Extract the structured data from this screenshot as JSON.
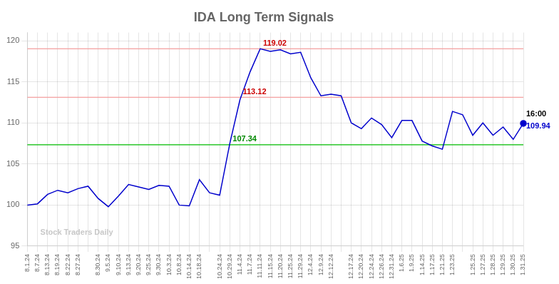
{
  "chart_data": {
    "type": "line",
    "title": "IDA Long Term Signals",
    "categories": [
      "8.1.24",
      "8.7.24",
      "8.13.24",
      "8.19.24",
      "8.22.24",
      "8.27.24",
      null,
      "8.30.24",
      "9.5.24",
      "9.10.24",
      "9.13.24",
      "9.20.24",
      "9.25.24",
      "9.30.24",
      "10.3.24",
      "10.8.24",
      "10.14.24",
      "10.18.24",
      null,
      "10.24.24",
      "10.29.24",
      "11.4.24",
      "11.7.24",
      "11.11.24",
      "11.15.24",
      "11.20.24",
      "11.25.24",
      "11.29.24",
      "12.4.24",
      "12.9.24",
      "12.12.24",
      null,
      "12.17.24",
      "12.20.24",
      "12.24.24",
      "12.26.24",
      "12.31.24",
      "1.6.25",
      "1.9.25",
      "1.14.25",
      "1.17.25",
      "1.21.25",
      "1.23.25",
      null,
      "1.25.25",
      "1.27.25",
      "1.28.25",
      "1.29.25",
      "1.30.25",
      "1.31.25"
    ],
    "values": [
      100.0,
      100.15,
      101.3,
      101.8,
      101.5,
      102.0,
      102.3,
      100.8,
      99.8,
      101.1,
      102.5,
      102.2,
      101.9,
      102.4,
      102.3,
      100.0,
      99.9,
      103.1,
      101.5,
      101.2,
      107.5,
      112.8,
      116.2,
      119.02,
      118.7,
      118.9,
      118.4,
      118.6,
      115.5,
      113.3,
      113.5,
      113.3,
      110.0,
      109.3,
      110.6,
      109.8,
      108.2,
      110.3,
      110.3,
      107.8,
      107.2,
      106.8,
      111.4,
      111.0,
      108.5,
      110.0,
      108.5,
      109.5,
      108.0,
      109.94
    ],
    "color": "#0000cc",
    "ylim": [
      95,
      121
    ],
    "yticks": [
      95,
      100,
      105,
      110,
      115,
      120
    ],
    "grid": true,
    "reference_lines": [
      {
        "value": 119.02,
        "color": "#f4a0a0"
      },
      {
        "value": 113.12,
        "color": "#f4a0a0"
      },
      {
        "value": 107.34,
        "color": "#00bb00"
      }
    ],
    "annotations": [
      {
        "text": "119.02",
        "x": "11.11.24",
        "y": 119.02,
        "color": "#cc0000"
      },
      {
        "text": "113.12",
        "x": "11.4.24",
        "y": 113.12,
        "color": "#cc0000"
      },
      {
        "text": "107.34",
        "x": "10.29.24",
        "y": 107.34,
        "color": "#008800"
      },
      {
        "text": "16:00",
        "x": "1.31.25",
        "y": 110.44,
        "color": "#000000"
      },
      {
        "text": "109.94",
        "x": "1.31.25",
        "y": 108.94,
        "color": "#0000cc"
      },
      {
        "text": "Stock Traders Daily",
        "x": "8.7.24",
        "y": 96,
        "color": "#c8c8c8"
      }
    ]
  }
}
